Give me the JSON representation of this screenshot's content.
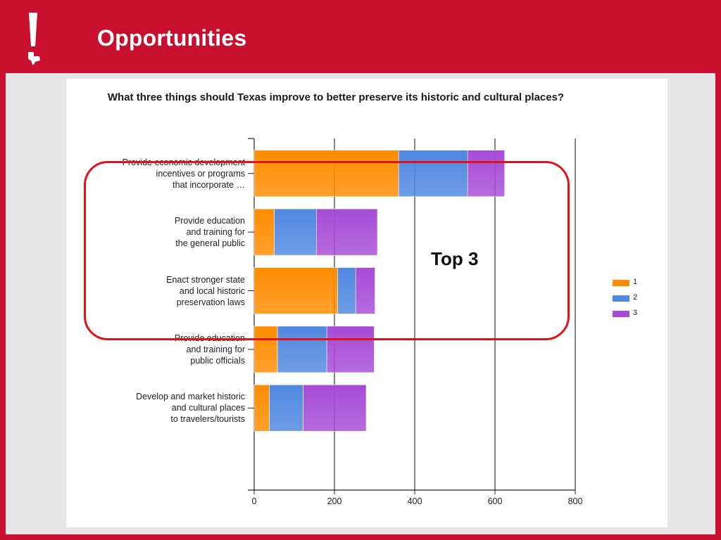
{
  "slide": {
    "title": "Opportunities"
  },
  "annotation": {
    "label": "Top 3"
  },
  "colors": {
    "background": "#c8102e",
    "series_1": "#ff8c00",
    "series_2": "#4f88e0",
    "series_3": "#a64bd6",
    "highlight": "#e0121a"
  },
  "chart_data": {
    "type": "bar",
    "orientation": "horizontal",
    "stacked": true,
    "title": "What three things should Texas improve to better preserve its historic and cultural places?",
    "categories": [
      "Provide economic development incentives or programs that incorporate …",
      "Provide education and training for the general public",
      "Enact stronger state and local historic preservation laws",
      "Provide education and training for public officials",
      "Develop and market historic and cultural places to travelers/tourists"
    ],
    "category_lines": [
      [
        "Provide economic development",
        "incentives or programs",
        "that incorporate …"
      ],
      [
        "Provide education",
        "and training for",
        "the general public"
      ],
      [
        "Enact stronger state",
        "and local historic",
        "preservation laws"
      ],
      [
        "Provide education",
        "and training for",
        "public officials"
      ],
      [
        "Develop and market historic",
        "and cultural places",
        "to travelers/tourists"
      ]
    ],
    "series": [
      {
        "name": "1",
        "values": [
          360,
          50,
          208,
          58,
          38
        ]
      },
      {
        "name": "2",
        "values": [
          172,
          105,
          45,
          123,
          84
        ]
      },
      {
        "name": "3",
        "values": [
          92,
          152,
          48,
          118,
          157
        ]
      }
    ],
    "xlim": [
      0,
      800
    ],
    "xticks": [
      0,
      200,
      400,
      600,
      800
    ],
    "grid": true,
    "legend": "right",
    "xlabel": "",
    "ylabel": ""
  }
}
